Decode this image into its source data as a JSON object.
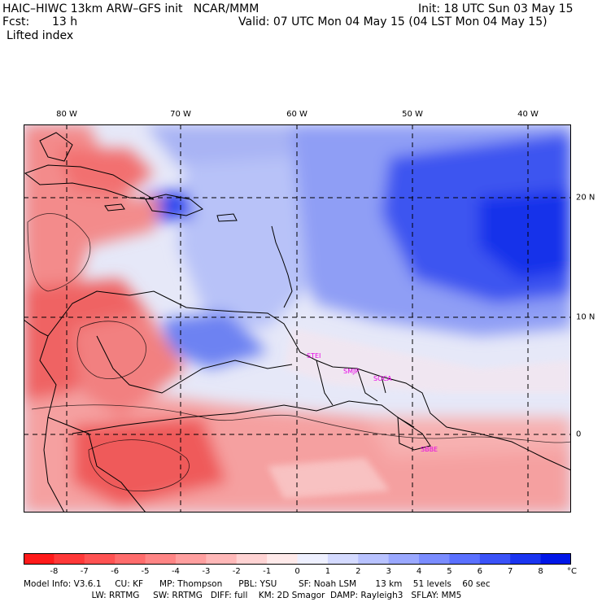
{
  "header": {
    "title_left": "HAIC–HIWC 13km ARW–GFS init   NCAR/MMM",
    "init": "Init: 18 UTC Sun 03 May 15",
    "fcst_label": "Fcst:",
    "fcst_value": "13 h",
    "valid": "Valid: 07 UTC Mon 04 May 15 (04 LST Mon 04 May 15)",
    "field": "Lifted index"
  },
  "map": {
    "lon_labels": [
      "80 W",
      "70 W",
      "60 W",
      "50 W",
      "40 W"
    ],
    "lat_labels": [
      "20 N",
      "10 N",
      "0"
    ],
    "stations": [
      "STEI",
      "SMJP",
      "SOCA",
      "SBBE"
    ],
    "colors": {
      "ocean_light": "#e8eaf8",
      "blue_strong": "#1a2ee8",
      "red_strong": "#ef4848",
      "coast": "#000000",
      "station": "#e600e6"
    }
  },
  "legend": {
    "ticks": [
      "-8",
      "-7",
      "-6",
      "-5",
      "-4",
      "-3",
      "-2",
      "-1",
      "0",
      "1",
      "2",
      "3",
      "4",
      "5",
      "6",
      "7",
      "8"
    ],
    "unit": "°C",
    "colors": [
      "#ff1a1a",
      "#ff3838",
      "#ff5252",
      "#ff6c6c",
      "#ff8585",
      "#ff9f9f",
      "#ffb8b8",
      "#ffd3d3",
      "#ffeaea",
      "#eef0ff",
      "#d4daff",
      "#b8c2ff",
      "#9aa8ff",
      "#7a8cff",
      "#5a70ff",
      "#3a52f8",
      "#1a34f0",
      "#0016e8"
    ]
  },
  "model_info": {
    "line1": "Model Info: V3.6.1     CU: KF      MP: Thompson      PBL: YSU        SF: Noah LSM       13 km    51 levels    60 sec",
    "line2": "                         LW: RRTMG     SW: RRTMG   DIFF: full    KM: 2D Smagor  DAMP: Rayleigh3   SFLAY: MM5"
  }
}
